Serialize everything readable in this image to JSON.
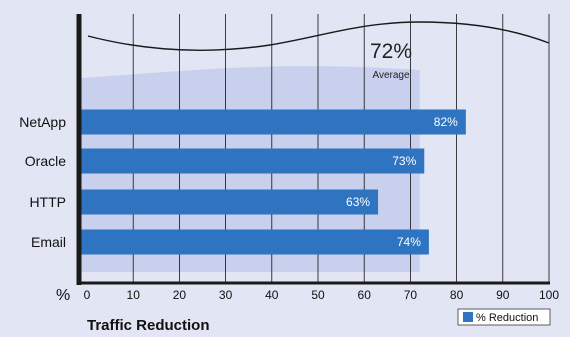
{
  "chart_data": {
    "type": "bar",
    "orientation": "horizontal",
    "title": "Traffic Reduction",
    "categories": [
      "NetApp",
      "Oracle",
      "HTTP",
      "Email"
    ],
    "series": [
      {
        "name": "% Reduction",
        "values": [
          82,
          73,
          63,
          74
        ],
        "labels": [
          "82%",
          "73%",
          "63%",
          "74%"
        ]
      }
    ],
    "x_unit_label": "%",
    "xlim": [
      0,
      100
    ],
    "x_ticks": [
      0,
      10,
      20,
      30,
      40,
      50,
      60,
      70,
      80,
      90,
      100
    ],
    "grid": "vertical",
    "legend_position": "bottom-right",
    "average": {
      "value": 72,
      "value_label": "72%",
      "label": "Average"
    },
    "colors": {
      "background": "#e2e5f3",
      "bar": "#2e74c0",
      "average_band": "#c3cdeb",
      "grid": "#111111",
      "axis": "#1a1a1a"
    }
  }
}
